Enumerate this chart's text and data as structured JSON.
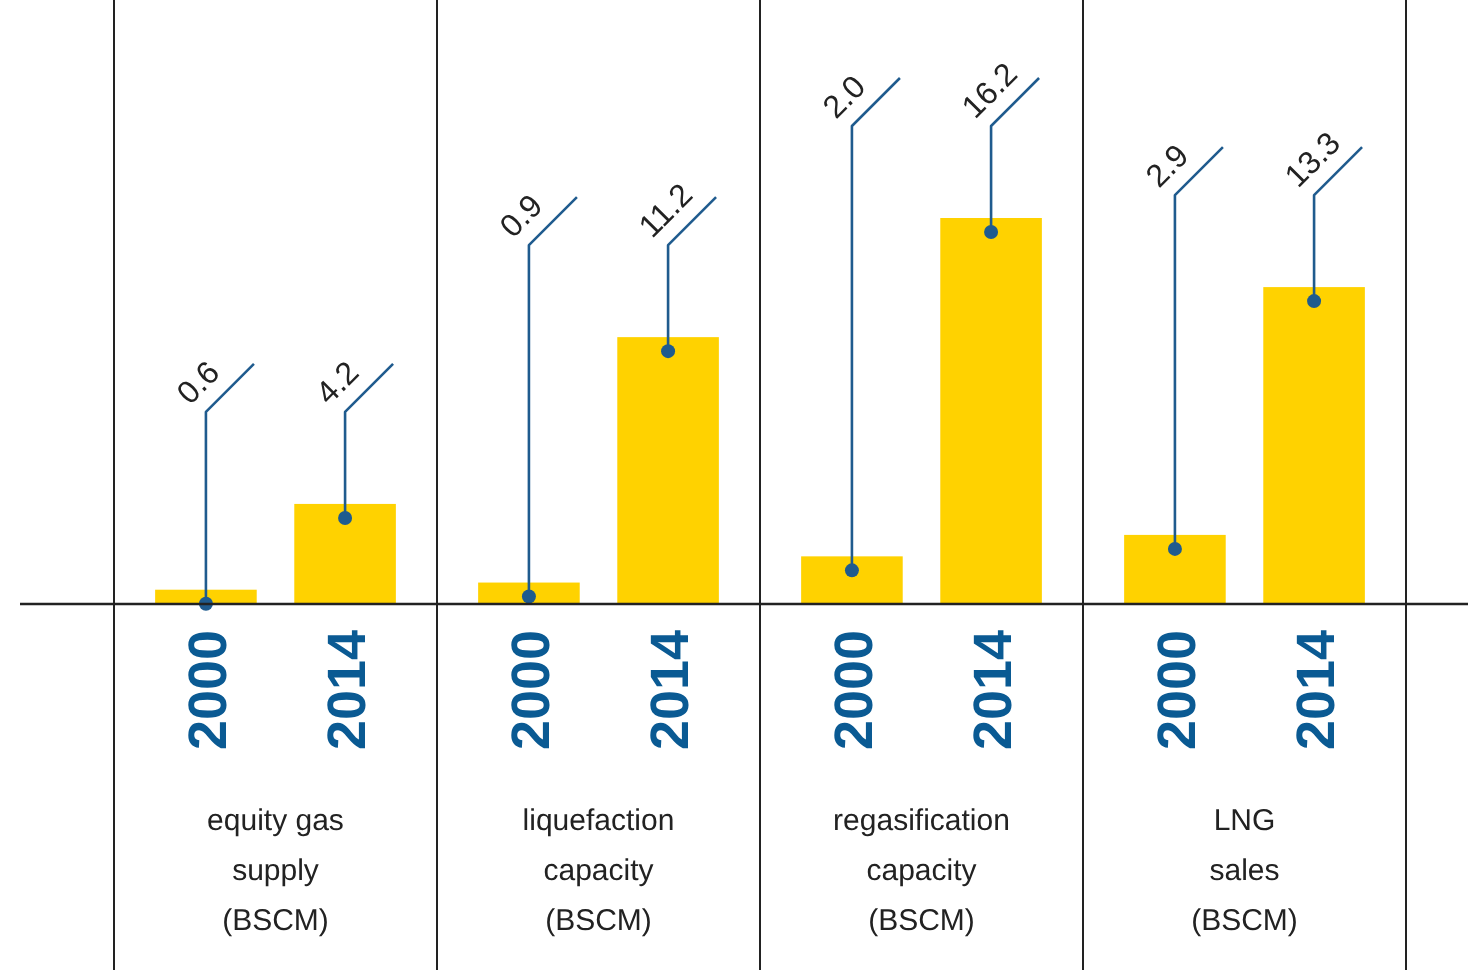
{
  "chart_data": [
    {
      "type": "bar",
      "categories": [
        "2000",
        "2014"
      ],
      "values": [
        0.6,
        4.2
      ],
      "value_labels": [
        "0.6",
        "4.2"
      ],
      "color": "#ffd200",
      "xlabel": "equity gas\nsupply\n(BSCM)"
    },
    {
      "type": "bar",
      "categories": [
        "2000",
        "2014"
      ],
      "values": [
        0.9,
        11.2
      ],
      "value_labels": [
        "0.9",
        "11.2"
      ],
      "color": "#ffd200",
      "xlabel": "liquefaction\ncapacity\n(BSCM)"
    },
    {
      "type": "bar",
      "categories": [
        "2000",
        "2014"
      ],
      "values": [
        2.0,
        16.2
      ],
      "value_labels": [
        "2.0",
        "16.2"
      ],
      "color": "#ffd200",
      "xlabel": "regasification\ncapacity\n(BSCM)"
    },
    {
      "type": "bar",
      "categories": [
        "2000",
        "2014"
      ],
      "values": [
        2.9,
        13.3
      ],
      "value_labels": [
        "2.9",
        "13.3"
      ],
      "color": "#ffd200",
      "xlabel": "LNG\nsales\n(BSCM)"
    }
  ]
}
